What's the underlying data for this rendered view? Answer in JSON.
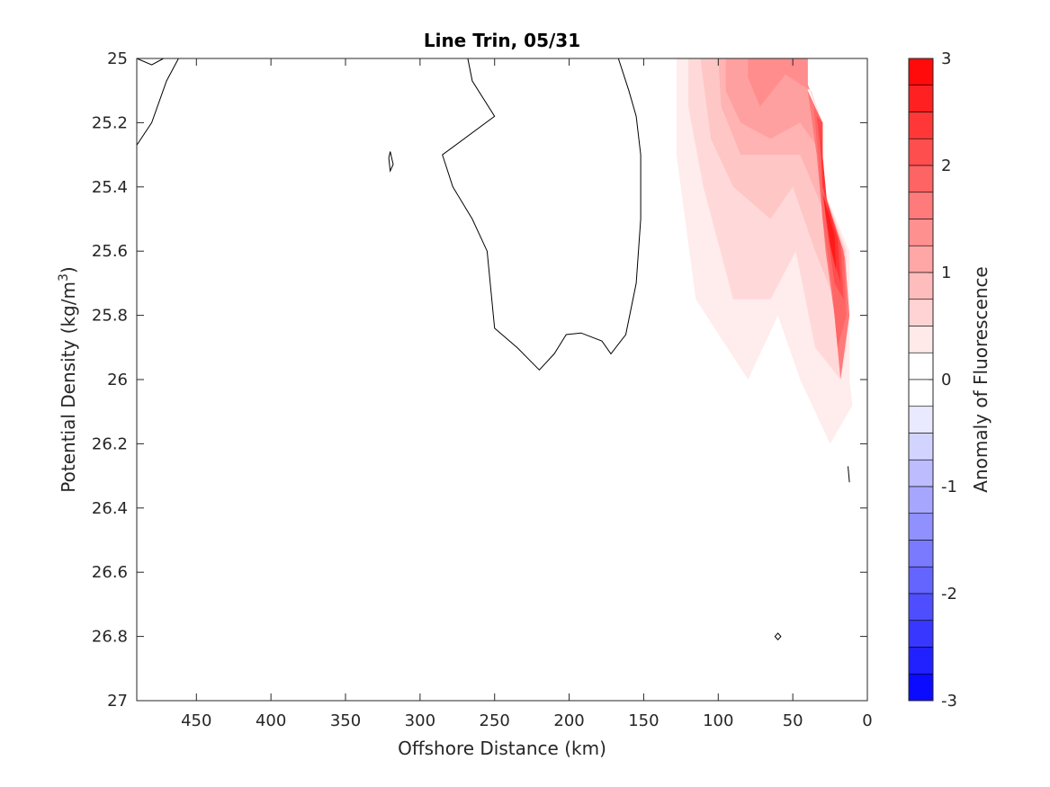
{
  "chart_data": {
    "type": "contour",
    "title": "Line Trin, 05/31",
    "xlabel": "Offshore Distance (km)",
    "ylabel": "Potential Density (kg/m",
    "ylabel_superscript": "3",
    "ylabel_close": ")",
    "xlim": [
      490,
      0
    ],
    "x_reversed": true,
    "ylim": [
      25,
      27
    ],
    "y_reversed": true,
    "x_ticks": [
      "450",
      "400",
      "350",
      "300",
      "250",
      "200",
      "150",
      "100",
      "50",
      "0"
    ],
    "x_tick_values": [
      450,
      400,
      350,
      300,
      250,
      200,
      150,
      100,
      50,
      0
    ],
    "y_ticks": [
      "25",
      "25.2",
      "25.4",
      "25.6",
      "25.8",
      "26",
      "26.2",
      "26.4",
      "26.6",
      "26.8",
      "27"
    ],
    "y_tick_values": [
      25,
      25.2,
      25.4,
      25.6,
      25.8,
      26,
      26.2,
      26.4,
      26.6,
      26.8,
      27
    ],
    "colorbar": {
      "label": "Anomaly of Fluorescence",
      "range": [
        -3,
        3
      ],
      "levels": 24,
      "ticks": [
        "3",
        "2",
        "1",
        "0",
        "-1",
        "-2",
        "-3"
      ],
      "tick_values": [
        3,
        2,
        1,
        0,
        -1,
        -2,
        -3
      ],
      "positive_color": "#ff0000",
      "negative_color": "#0000ff",
      "zero_color": "#ffffff"
    },
    "filled_regions": [
      {
        "level": 0.25,
        "color": "#ffecec",
        "points": [
          [
            128,
            25
          ],
          [
            40,
            25
          ],
          [
            40,
            25.1
          ],
          [
            30,
            25.2
          ],
          [
            30,
            25.4
          ],
          [
            12,
            25.6
          ],
          [
            12,
            26.0
          ],
          [
            10,
            26.08
          ],
          [
            25,
            26.2
          ],
          [
            45,
            26.0
          ],
          [
            60,
            25.8
          ],
          [
            80,
            26.0
          ],
          [
            115,
            25.75
          ],
          [
            128,
            25.3
          ]
        ]
      },
      {
        "level": 0.5,
        "color": "#ffd9d9",
        "points": [
          [
            120,
            25
          ],
          [
            40,
            25
          ],
          [
            40,
            25.1
          ],
          [
            30,
            25.2
          ],
          [
            30,
            25.4
          ],
          [
            14,
            25.6
          ],
          [
            14,
            25.9
          ],
          [
            18,
            26.0
          ],
          [
            35,
            25.9
          ],
          [
            48,
            25.6
          ],
          [
            65,
            25.75
          ],
          [
            90,
            25.75
          ],
          [
            110,
            25.4
          ],
          [
            120,
            25.15
          ]
        ]
      },
      {
        "level": 0.75,
        "color": "#ffc6c6",
        "points": [
          [
            112,
            25
          ],
          [
            40,
            25
          ],
          [
            40,
            25.1
          ],
          [
            30,
            25.2
          ],
          [
            30,
            25.4
          ],
          [
            15,
            25.6
          ],
          [
            18,
            25.8
          ],
          [
            35,
            25.6
          ],
          [
            50,
            25.4
          ],
          [
            65,
            25.5
          ],
          [
            90,
            25.4
          ],
          [
            105,
            25.25
          ]
        ]
      },
      {
        "level": 1.0,
        "color": "#ffb3b3",
        "points": [
          [
            100,
            25
          ],
          [
            40,
            25
          ],
          [
            40,
            25.1
          ],
          [
            30,
            25.2
          ],
          [
            30,
            25.4
          ],
          [
            18,
            25.6
          ],
          [
            45,
            25.3
          ],
          [
            60,
            25.3
          ],
          [
            85,
            25.3
          ],
          [
            98,
            25.15
          ]
        ]
      },
      {
        "level": 1.25,
        "color": "#ffa0a0",
        "points": [
          [
            95,
            25
          ],
          [
            40,
            25
          ],
          [
            40,
            25.1
          ],
          [
            30,
            25.2
          ],
          [
            30,
            25.3
          ],
          [
            45,
            25.2
          ],
          [
            65,
            25.25
          ],
          [
            85,
            25.2
          ],
          [
            95,
            25.1
          ]
        ]
      },
      {
        "level": 1.5,
        "color": "#ff8d8d",
        "points": [
          [
            80,
            25
          ],
          [
            40,
            25
          ],
          [
            40,
            25.08
          ],
          [
            30,
            25.2
          ],
          [
            38,
            25.1
          ],
          [
            55,
            25.05
          ],
          [
            72,
            25.15
          ],
          [
            80,
            25.06
          ]
        ]
      },
      {
        "level": 1.75,
        "color": "#ff7a7a",
        "points": [
          [
            40,
            25.1
          ],
          [
            30,
            25.2
          ],
          [
            30,
            25.4
          ],
          [
            15,
            25.62
          ],
          [
            12,
            25.8
          ],
          [
            18,
            26.0
          ],
          [
            22,
            25.8
          ],
          [
            28,
            25.6
          ],
          [
            34,
            25.3
          ]
        ]
      },
      {
        "level": 2.0,
        "color": "#ff6666",
        "points": [
          [
            36,
            25.15
          ],
          [
            30,
            25.2
          ],
          [
            30,
            25.4
          ],
          [
            16,
            25.6
          ],
          [
            14,
            25.8
          ],
          [
            20,
            25.9
          ],
          [
            24,
            25.7
          ],
          [
            30,
            25.5
          ],
          [
            33,
            25.3
          ]
        ]
      },
      {
        "level": 2.25,
        "color": "#ff4d4d",
        "points": [
          [
            34,
            25.18
          ],
          [
            30,
            25.2
          ],
          [
            30,
            25.4
          ],
          [
            18,
            25.58
          ],
          [
            16,
            25.75
          ],
          [
            22,
            25.7
          ],
          [
            28,
            25.5
          ],
          [
            31,
            25.3
          ]
        ]
      },
      {
        "level": 2.5,
        "color": "#ff3333",
        "points": [
          [
            32,
            25.2
          ],
          [
            30,
            25.4
          ],
          [
            20,
            25.56
          ],
          [
            18,
            25.7
          ],
          [
            24,
            25.6
          ],
          [
            29,
            25.35
          ]
        ]
      },
      {
        "level": 2.75,
        "color": "#ff1a1a",
        "points": [
          [
            30,
            25.42
          ],
          [
            22,
            25.55
          ],
          [
            21,
            25.66
          ],
          [
            25,
            25.58
          ]
        ]
      }
    ],
    "zero_contours": [
      {
        "closed": false,
        "points": [
          [
            490,
            25
          ],
          [
            480,
            25.02
          ],
          [
            472,
            25
          ]
        ]
      },
      {
        "closed": false,
        "points": [
          [
            490,
            25.27
          ],
          [
            480,
            25.2
          ],
          [
            470,
            25.07
          ],
          [
            462,
            25
          ]
        ]
      },
      {
        "closed": true,
        "points": [
          [
            320,
            25.29
          ],
          [
            318,
            25.33
          ],
          [
            320,
            25.35
          ],
          [
            321,
            25.31
          ]
        ]
      },
      {
        "closed": false,
        "points": [
          [
            268,
            25
          ],
          [
            265,
            25.07
          ],
          [
            250,
            25.18
          ],
          [
            285,
            25.3
          ],
          [
            278,
            25.4
          ],
          [
            265,
            25.5
          ],
          [
            255,
            25.6
          ],
          [
            250,
            25.84
          ],
          [
            235,
            25.9
          ],
          [
            220,
            25.97
          ],
          [
            210,
            25.92
          ],
          [
            202,
            25.86
          ],
          [
            192,
            25.855
          ],
          [
            178,
            25.88
          ],
          [
            172,
            25.92
          ],
          [
            162,
            25.86
          ],
          [
            155,
            25.7
          ],
          [
            152,
            25.5
          ],
          [
            152,
            25.3
          ],
          [
            155,
            25.18
          ],
          [
            160,
            25.1
          ],
          [
            167,
            25
          ]
        ]
      },
      {
        "closed": false,
        "points": [
          [
            13,
            26.27
          ],
          [
            12,
            26.32
          ]
        ]
      },
      {
        "closed": true,
        "points": [
          [
            60,
            26.79
          ],
          [
            58,
            26.8
          ],
          [
            60,
            26.81
          ],
          [
            62,
            26.8
          ]
        ]
      }
    ]
  }
}
